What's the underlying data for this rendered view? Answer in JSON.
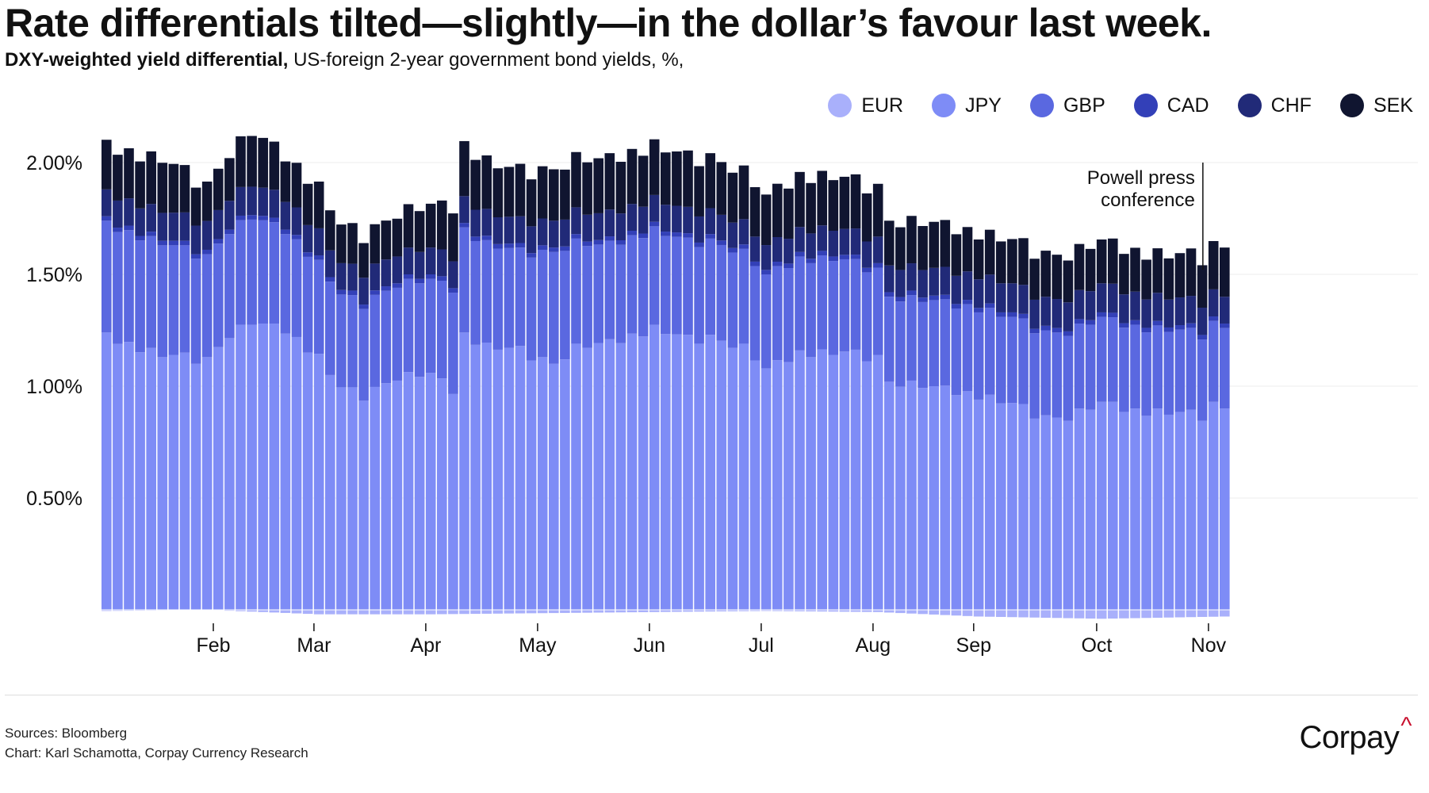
{
  "title": "Rate differentials tilted—slightly—in the dollar’s favour last week.",
  "subtitle": {
    "bold": "DXY-weighted yield differential,",
    "rest": " US-foreign 2-year government bond yields, %,"
  },
  "footer": {
    "source": "Sources: Bloomberg",
    "credit": "Chart: Karl Schamotta, Corpay Currency Research",
    "logo": "Corpay",
    "logo_mark": "^"
  },
  "chart_data": {
    "type": "bar",
    "stacked": true,
    "xlabel": "",
    "ylabel": "",
    "ylim": [
      -0.05,
      2.2
    ],
    "yticks": [
      0.5,
      1.0,
      1.5,
      2.0
    ],
    "ytick_labels": [
      "0.50%",
      "1.00%",
      "1.50%",
      "2.00%"
    ],
    "grid": true,
    "legend_position": "top-right",
    "month_labels": [
      "Feb",
      "Mar",
      "Apr",
      "May",
      "Jun",
      "Jul",
      "Aug",
      "Sep",
      "Oct",
      "Nov"
    ],
    "month_start_index": [
      10,
      19,
      29,
      39,
      49,
      59,
      69,
      78,
      89,
      99
    ],
    "annotation": {
      "text": [
        "Powell press",
        "conference"
      ],
      "index": 98.5
    },
    "series": [
      {
        "name": "EUR",
        "color": "#a9b0fb",
        "anchors": [
          [
            0,
            -0.005
          ],
          [
            9,
            0.0
          ],
          [
            19,
            -0.02
          ],
          [
            29,
            -0.02
          ],
          [
            39,
            -0.015
          ],
          [
            49,
            -0.01
          ],
          [
            59,
            -0.005
          ],
          [
            69,
            -0.01
          ],
          [
            78,
            -0.03
          ],
          [
            89,
            -0.04
          ],
          [
            100,
            -0.03
          ]
        ]
      },
      {
        "name": "JPY",
        "color": "#7e8cf6",
        "anchors": [
          [
            0,
            1.22
          ],
          [
            5,
            1.14
          ],
          [
            9,
            1.12
          ],
          [
            11,
            1.23
          ],
          [
            13,
            1.28
          ],
          [
            16,
            1.25
          ],
          [
            19,
            1.13
          ],
          [
            21,
            0.99
          ],
          [
            23,
            0.96
          ],
          [
            26,
            1.04
          ],
          [
            29,
            1.05
          ],
          [
            31,
            0.98
          ],
          [
            32,
            1.23
          ],
          [
            34,
            1.18
          ],
          [
            37,
            1.16
          ],
          [
            40,
            1.1
          ],
          [
            42,
            1.17
          ],
          [
            45,
            1.19
          ],
          [
            49,
            1.26
          ],
          [
            52,
            1.21
          ],
          [
            54,
            1.22
          ],
          [
            57,
            1.17
          ],
          [
            59,
            1.07
          ],
          [
            62,
            1.15
          ],
          [
            66,
            1.15
          ],
          [
            69,
            1.13
          ],
          [
            70,
            1.02
          ],
          [
            74,
            0.99
          ],
          [
            78,
            0.96
          ],
          [
            81,
            0.92
          ],
          [
            84,
            0.86
          ],
          [
            86,
            0.86
          ],
          [
            89,
            0.92
          ],
          [
            92,
            0.89
          ],
          [
            96,
            0.88
          ],
          [
            98,
            0.87
          ],
          [
            99,
            0.92
          ],
          [
            100,
            0.9
          ]
        ]
      },
      {
        "name": "GBP",
        "color": "#5a68e0",
        "anchors": [
          [
            0,
            0.5
          ],
          [
            5,
            0.5
          ],
          [
            9,
            0.46
          ],
          [
            13,
            0.47
          ],
          [
            19,
            0.42
          ],
          [
            23,
            0.41
          ],
          [
            29,
            0.42
          ],
          [
            32,
            0.47
          ],
          [
            37,
            0.44
          ],
          [
            40,
            0.5
          ],
          [
            44,
            0.44
          ],
          [
            49,
            0.44
          ],
          [
            54,
            0.43
          ],
          [
            59,
            0.42
          ],
          [
            65,
            0.42
          ],
          [
            69,
            0.39
          ],
          [
            70,
            0.38
          ],
          [
            78,
            0.39
          ],
          [
            84,
            0.38
          ],
          [
            89,
            0.38
          ],
          [
            95,
            0.37
          ],
          [
            100,
            0.36
          ]
        ]
      },
      {
        "name": "CAD",
        "color": "#3340b8",
        "anchors": [
          [
            0,
            0.02
          ],
          [
            100,
            0.02
          ]
        ]
      },
      {
        "name": "CHF",
        "color": "#212a78",
        "anchors": [
          [
            0,
            0.12
          ],
          [
            10,
            0.13
          ],
          [
            20,
            0.12
          ],
          [
            30,
            0.12
          ],
          [
            40,
            0.12
          ],
          [
            50,
            0.12
          ],
          [
            60,
            0.11
          ],
          [
            70,
            0.12
          ],
          [
            80,
            0.13
          ],
          [
            90,
            0.13
          ],
          [
            100,
            0.12
          ]
        ]
      },
      {
        "name": "SEK",
        "color": "#101530",
        "anchors": [
          [
            0,
            0.21
          ],
          [
            5,
            0.23
          ],
          [
            9,
            0.17
          ],
          [
            11,
            0.2
          ],
          [
            13,
            0.23
          ],
          [
            16,
            0.19
          ],
          [
            19,
            0.2
          ],
          [
            21,
            0.17
          ],
          [
            24,
            0.17
          ],
          [
            29,
            0.19
          ],
          [
            32,
            0.24
          ],
          [
            36,
            0.22
          ],
          [
            40,
            0.23
          ],
          [
            44,
            0.24
          ],
          [
            49,
            0.24
          ],
          [
            54,
            0.24
          ],
          [
            59,
            0.22
          ],
          [
            62,
            0.24
          ],
          [
            66,
            0.23
          ],
          [
            69,
            0.23
          ],
          [
            70,
            0.2
          ],
          [
            74,
            0.2
          ],
          [
            78,
            0.19
          ],
          [
            84,
            0.2
          ],
          [
            89,
            0.19
          ],
          [
            95,
            0.19
          ],
          [
            99,
            0.21
          ],
          [
            100,
            0.22
          ]
        ]
      }
    ],
    "ripple": [
      0.02,
      -0.015,
      0.01,
      -0.02,
      0.015,
      -0.01,
      0.005,
      0.02,
      -0.025,
      0.01,
      0.0,
      -0.015,
      0.02,
      -0.005,
      0.01
    ]
  }
}
